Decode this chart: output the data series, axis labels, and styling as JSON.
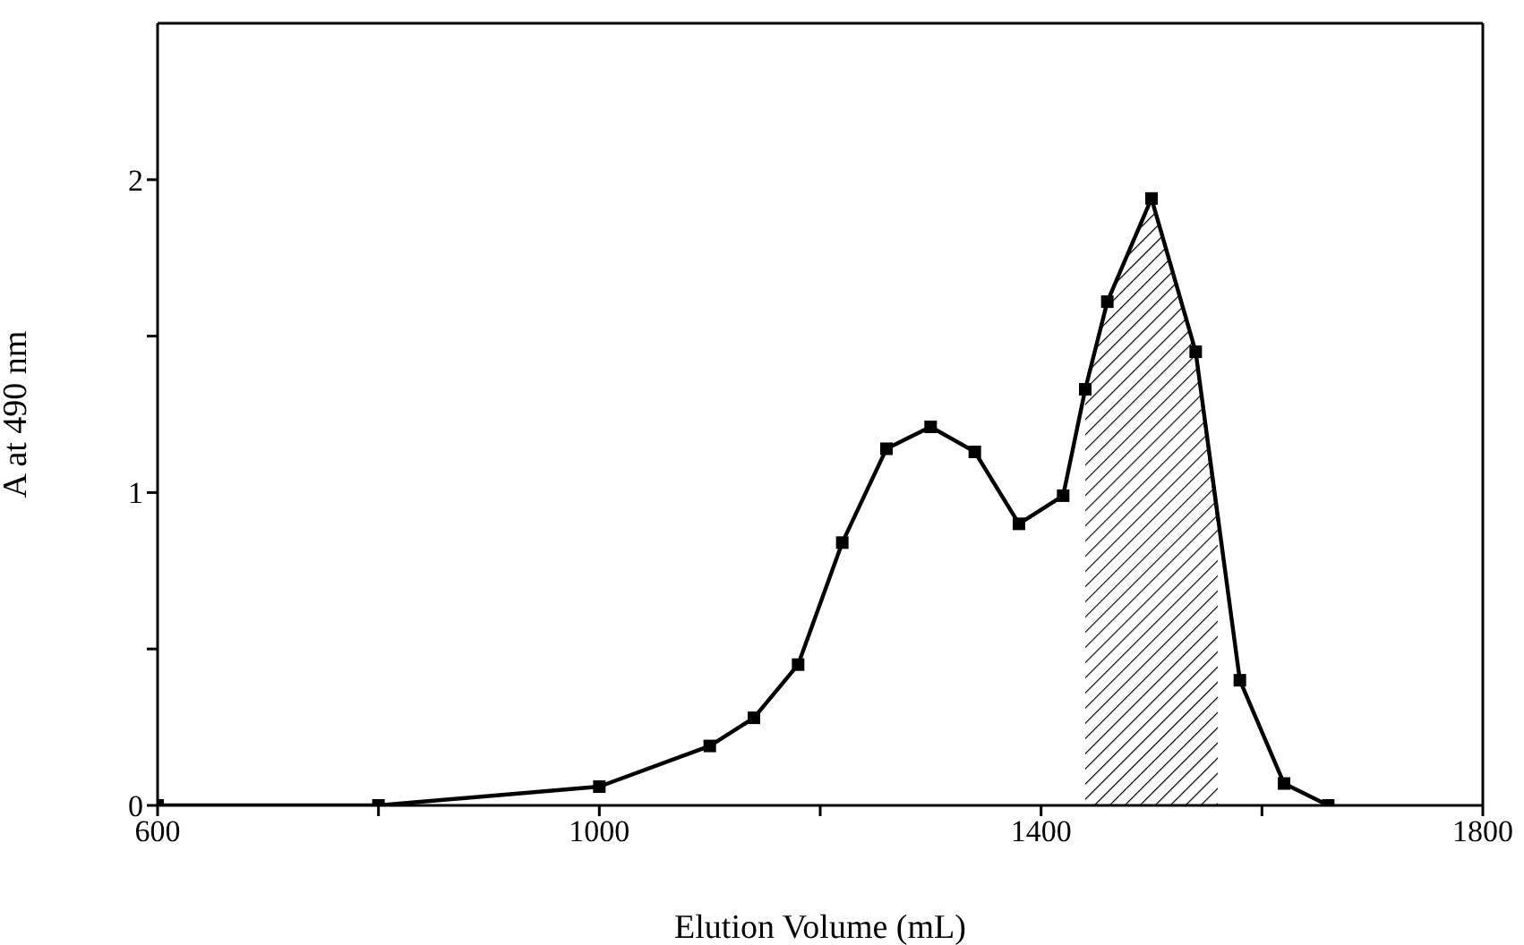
{
  "chart_data": {
    "type": "line",
    "xlabel": "Elution Volume (mL)",
    "ylabel": "A at 490 nm",
    "xlim": [
      600,
      1800
    ],
    "xticks": [
      600,
      {
        "value": 800,
        "label": null
      },
      1000,
      {
        "value": 1200,
        "label": null
      },
      1400,
      {
        "value": 1600,
        "label": null
      },
      1800
    ],
    "ylim": [
      0,
      2.5
    ],
    "yticks": [
      0,
      {
        "value": 0.5,
        "label": null
      },
      1,
      {
        "value": 1.5,
        "label": null
      },
      2
    ],
    "marker": "square",
    "line_style": "solid",
    "grid": false,
    "legend": false,
    "series": [
      {
        "type": "area",
        "color": "#000000",
        "x": [
          1440,
          1460,
          1500,
          1540,
          1560
        ],
        "values": [
          1.33,
          1.61,
          1.94,
          1.45,
          0.91
        ]
      },
      {
        "color": "#000000",
        "x": [
          600,
          800,
          1000,
          1100,
          1140,
          1180,
          1220,
          1260,
          1300,
          1340,
          1380,
          1420,
          1440,
          1460,
          1500,
          1540,
          1580,
          1620,
          1660
        ],
        "values": [
          0,
          0,
          0.06,
          0.19,
          0.28,
          0.45,
          0.84,
          1.14,
          1.21,
          1.13,
          0.9,
          0.99,
          1.33,
          1.61,
          1.94,
          1.45,
          0.4,
          0.07,
          0
        ]
      }
    ]
  }
}
